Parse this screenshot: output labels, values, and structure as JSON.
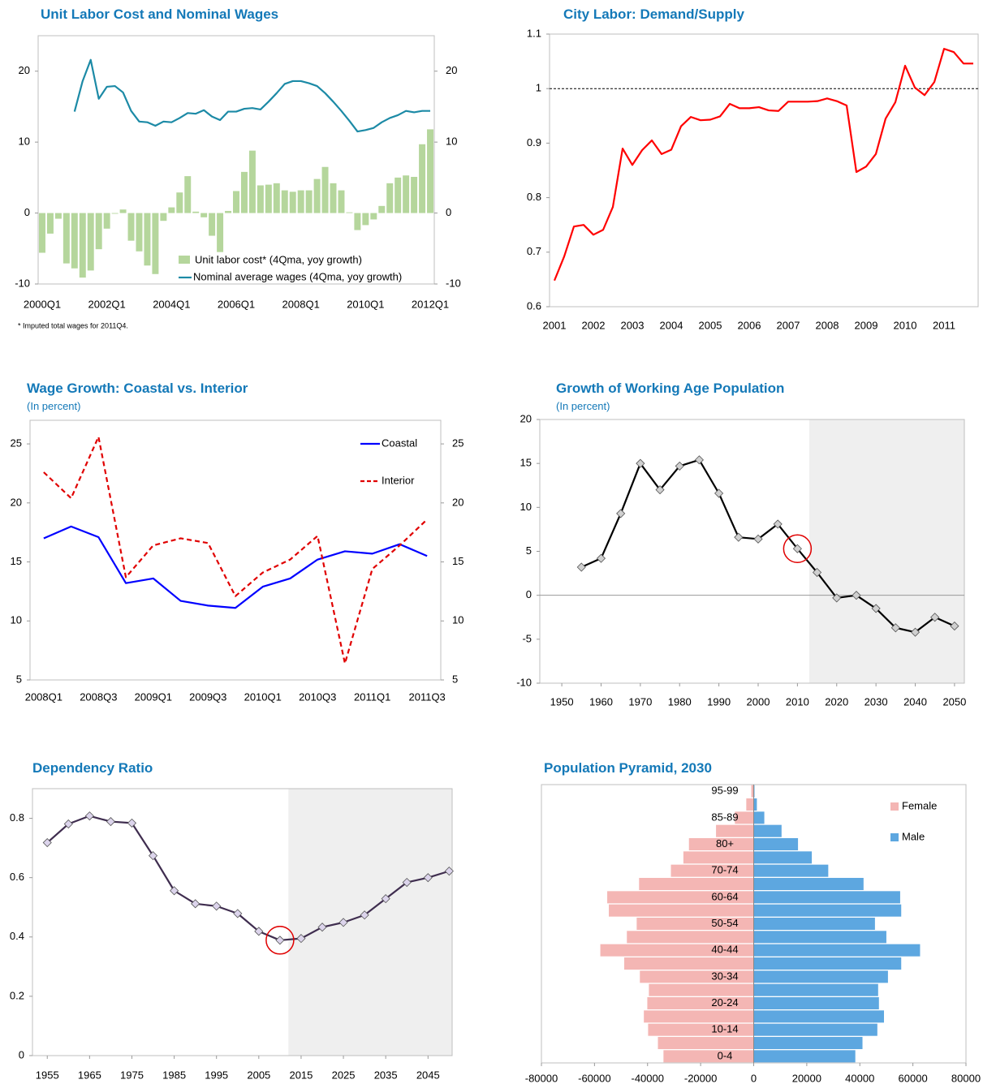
{
  "chart_data": [
    {
      "type": "combo",
      "title": "Unit Labor Cost and Nominal Wages",
      "note": "* Imputed total wages for 2011Q4.",
      "categories": [
        "2000Q1",
        null,
        null,
        null,
        null,
        null,
        null,
        null,
        "2002Q1",
        null,
        null,
        null,
        null,
        null,
        null,
        null,
        "2004Q1",
        null,
        null,
        null,
        null,
        null,
        null,
        null,
        "2006Q1",
        null,
        null,
        null,
        null,
        null,
        null,
        null,
        "2008Q1",
        null,
        null,
        null,
        null,
        null,
        null,
        null,
        "2010Q1",
        null,
        null,
        null,
        null,
        null,
        null,
        null,
        "2012Q1"
      ],
      "series": [
        {
          "name": "Unit labor cost* (4Qma, yoy growth)",
          "type": "bar",
          "color": "#b5d69c",
          "values": [
            -5.6,
            -2.9,
            -0.8,
            -7.1,
            -7.8,
            -9.1,
            -8.1,
            -5.1,
            -2.2,
            -0.1,
            0.5,
            -3.9,
            -5.4,
            -7.4,
            -8.6,
            -1.1,
            0.8,
            2.9,
            5.2,
            0.2,
            -0.6,
            -3.2,
            -5.5,
            0.3,
            3.1,
            5.8,
            8.8,
            3.9,
            4.0,
            4.2,
            3.2,
            3.0,
            3.2,
            3.2,
            4.8,
            6.5,
            4.2,
            3.2,
            0.1,
            -2.4,
            -1.7,
            -0.9,
            1.0,
            4.2,
            5.0,
            5.3,
            5.1,
            9.7,
            11.8
          ]
        },
        {
          "name": "Nominal average wages (4Qma, yoy growth)",
          "type": "line",
          "color": "#1c8aa6",
          "axis": "y2",
          "values": [
            null,
            null,
            null,
            null,
            14.3,
            18.6,
            21.6,
            16.1,
            17.8,
            17.9,
            17.0,
            14.4,
            12.9,
            12.8,
            12.3,
            12.9,
            12.8,
            13.4,
            14.1,
            14.0,
            14.5,
            13.6,
            13.1,
            14.3,
            14.3,
            14.7,
            14.8,
            14.6,
            15.7,
            16.9,
            18.2,
            18.6,
            18.6,
            18.3,
            17.9,
            16.9,
            15.7,
            14.4,
            13.0,
            11.5,
            11.7,
            12.0,
            12.8,
            13.4,
            13.8,
            14.4,
            14.2,
            14.4,
            14.4
          ]
        }
      ],
      "ylim": [
        -10,
        25
      ],
      "yticks": [
        -10,
        0,
        10,
        20
      ],
      "y2lim": [
        -10,
        25
      ],
      "y2ticks": [
        -10,
        0,
        10,
        20
      ],
      "legend": "bottom right"
    },
    {
      "type": "line",
      "title": "City Labor: Demand/Supply",
      "categories": [
        "2001",
        null,
        null,
        null,
        "2002",
        null,
        null,
        null,
        "2003",
        null,
        null,
        null,
        "2004",
        null,
        null,
        null,
        "2005",
        null,
        null,
        null,
        "2006",
        null,
        null,
        null,
        "2007",
        null,
        null,
        null,
        "2008",
        null,
        null,
        null,
        "2009",
        null,
        null,
        null,
        "2010",
        null,
        null,
        null,
        "2011",
        null,
        null,
        null
      ],
      "series": [
        {
          "name": "Demand/Supply",
          "color": "#ff0000",
          "values": [
            0.648,
            0.692,
            0.747,
            0.75,
            0.732,
            0.741,
            0.783,
            0.89,
            0.86,
            0.887,
            0.905,
            0.88,
            0.888,
            0.931,
            0.948,
            0.942,
            0.943,
            0.949,
            0.972,
            0.964,
            0.964,
            0.966,
            0.96,
            0.959,
            0.976,
            0.976,
            0.976,
            0.977,
            0.982,
            0.977,
            0.969,
            0.847,
            0.857,
            0.88,
            0.945,
            0.975,
            1.042,
            1.002,
            0.988,
            1.012,
            1.073,
            1.067,
            1.046,
            1.046
          ]
        }
      ],
      "ylim": [
        0.6,
        1.1
      ],
      "yticks": [
        0.6,
        0.7,
        0.8,
        0.9,
        1,
        1.1
      ],
      "reference_line": 1
    },
    {
      "type": "line",
      "title": "Wage Growth: Coastal vs. Interior",
      "subtitle": "(In percent)",
      "categories": [
        "2008Q1",
        null,
        "2008Q3",
        null,
        "2009Q1",
        null,
        "2009Q3",
        null,
        "2010Q1",
        null,
        "2010Q3",
        null,
        "2011Q1",
        null,
        "2011Q3"
      ],
      "series": [
        {
          "name": "Coastal",
          "color": "#0000ff",
          "values": [
            17.0,
            18.0,
            17.1,
            13.2,
            13.6,
            11.7,
            11.3,
            11.1,
            12.9,
            13.6,
            15.2,
            15.9,
            15.7,
            16.5,
            15.5
          ]
        },
        {
          "name": "Interior",
          "color": "#e00000",
          "dash": true,
          "values": [
            22.6,
            20.4,
            25.6,
            13.7,
            16.4,
            17.0,
            16.6,
            12.1,
            14.1,
            15.2,
            17.2,
            6.4,
            14.4,
            16.4,
            18.6
          ]
        }
      ],
      "ylim": [
        5,
        27
      ],
      "yticks": [
        5,
        10,
        15,
        20,
        25
      ],
      "y2lim": [
        5,
        27
      ],
      "y2ticks": [
        5,
        10,
        15,
        20,
        25
      ],
      "legend": "top right"
    },
    {
      "type": "line",
      "title": "Growth of Working Age Population",
      "subtitle": "(In percent)",
      "x": [
        1955,
        1960,
        1965,
        1970,
        1975,
        1980,
        1985,
        1990,
        1995,
        2000,
        2005,
        2010,
        2015,
        2020,
        2025,
        2030,
        2035,
        2040,
        2045,
        2050
      ],
      "series": [
        {
          "name": "Working age population growth",
          "color": "#000000",
          "marker": true,
          "marker_color": "#d0d0d0",
          "values": [
            3.2,
            4.2,
            9.3,
            15.0,
            12.0,
            14.7,
            15.4,
            11.6,
            6.6,
            6.4,
            8.1,
            5.3,
            2.6,
            -0.3,
            0,
            -1.5,
            -3.7,
            -4.2,
            -2.5,
            -3.5
          ]
        }
      ],
      "xlim": [
        1944.4,
        2052.5
      ],
      "xticks": [
        1950,
        1960,
        1970,
        1980,
        1990,
        2000,
        2010,
        2020,
        2030,
        2040,
        2050
      ],
      "ylim": [
        -10,
        20
      ],
      "yticks": [
        -10,
        -5,
        0,
        5,
        10,
        15,
        20
      ],
      "shade_from": 2013,
      "highlight_x": 2010,
      "zero_line": true
    },
    {
      "type": "line",
      "title": "Dependency Ratio",
      "x": [
        1955,
        1960,
        1965,
        1970,
        1975,
        1980,
        1985,
        1990,
        1995,
        2000,
        2005,
        2010,
        2015,
        2020,
        2025,
        2030,
        2035,
        2040,
        2045,
        2050
      ],
      "series": [
        {
          "name": "Dependency ratio",
          "color": "#3f2d4f",
          "marker": true,
          "marker_color": "#dcd4ec",
          "values": [
            0.718,
            0.781,
            0.808,
            0.789,
            0.784,
            0.674,
            0.556,
            0.512,
            0.504,
            0.479,
            0.419,
            0.389,
            0.395,
            0.433,
            0.449,
            0.474,
            0.529,
            0.584,
            0.6,
            0.622
          ]
        }
      ],
      "xlim": [
        1951.5,
        2050.7
      ],
      "xticks": [
        1955,
        1965,
        1975,
        1985,
        1995,
        2005,
        2015,
        2025,
        2035,
        2045
      ],
      "ylim": [
        0,
        0.9
      ],
      "yticks": [
        0,
        0.2,
        0.4,
        0.6,
        0.8
      ],
      "shade_from": 2012,
      "highlight_x": 2010
    },
    {
      "type": "bar",
      "horizontal": true,
      "title": "Population Pyramid, 2030",
      "categories": [
        "0-4",
        null,
        "10-14",
        null,
        "20-24",
        null,
        "30-34",
        null,
        "40-44",
        null,
        "50-54",
        null,
        "60-64",
        null,
        "70-74",
        null,
        "80+",
        null,
        "85-89",
        null,
        "95-99"
      ],
      "series": [
        {
          "name": "Female",
          "color": "#f4b6b4",
          "values": [
            -34000,
            -36100,
            -39800,
            -41400,
            -40100,
            -39500,
            -42900,
            -48800,
            -57800,
            -47800,
            -44100,
            -54600,
            -55200,
            -43200,
            -31200,
            -26500,
            -24400,
            -14200,
            -7100,
            -2800,
            -900
          ]
        },
        {
          "name": "Male",
          "color": "#5da7e0",
          "values": [
            38300,
            41000,
            46600,
            49100,
            47200,
            46900,
            50600,
            55600,
            62700,
            50000,
            45700,
            55600,
            55200,
            41400,
            28100,
            21900,
            16700,
            10500,
            4000,
            1200,
            300
          ]
        }
      ],
      "xlim": [
        -80000,
        80000
      ],
      "xticks": [
        -80000,
        -60000,
        -40000,
        -20000,
        0,
        20000,
        40000,
        60000,
        80000
      ],
      "legend": "top right",
      "zero_line": true
    }
  ]
}
